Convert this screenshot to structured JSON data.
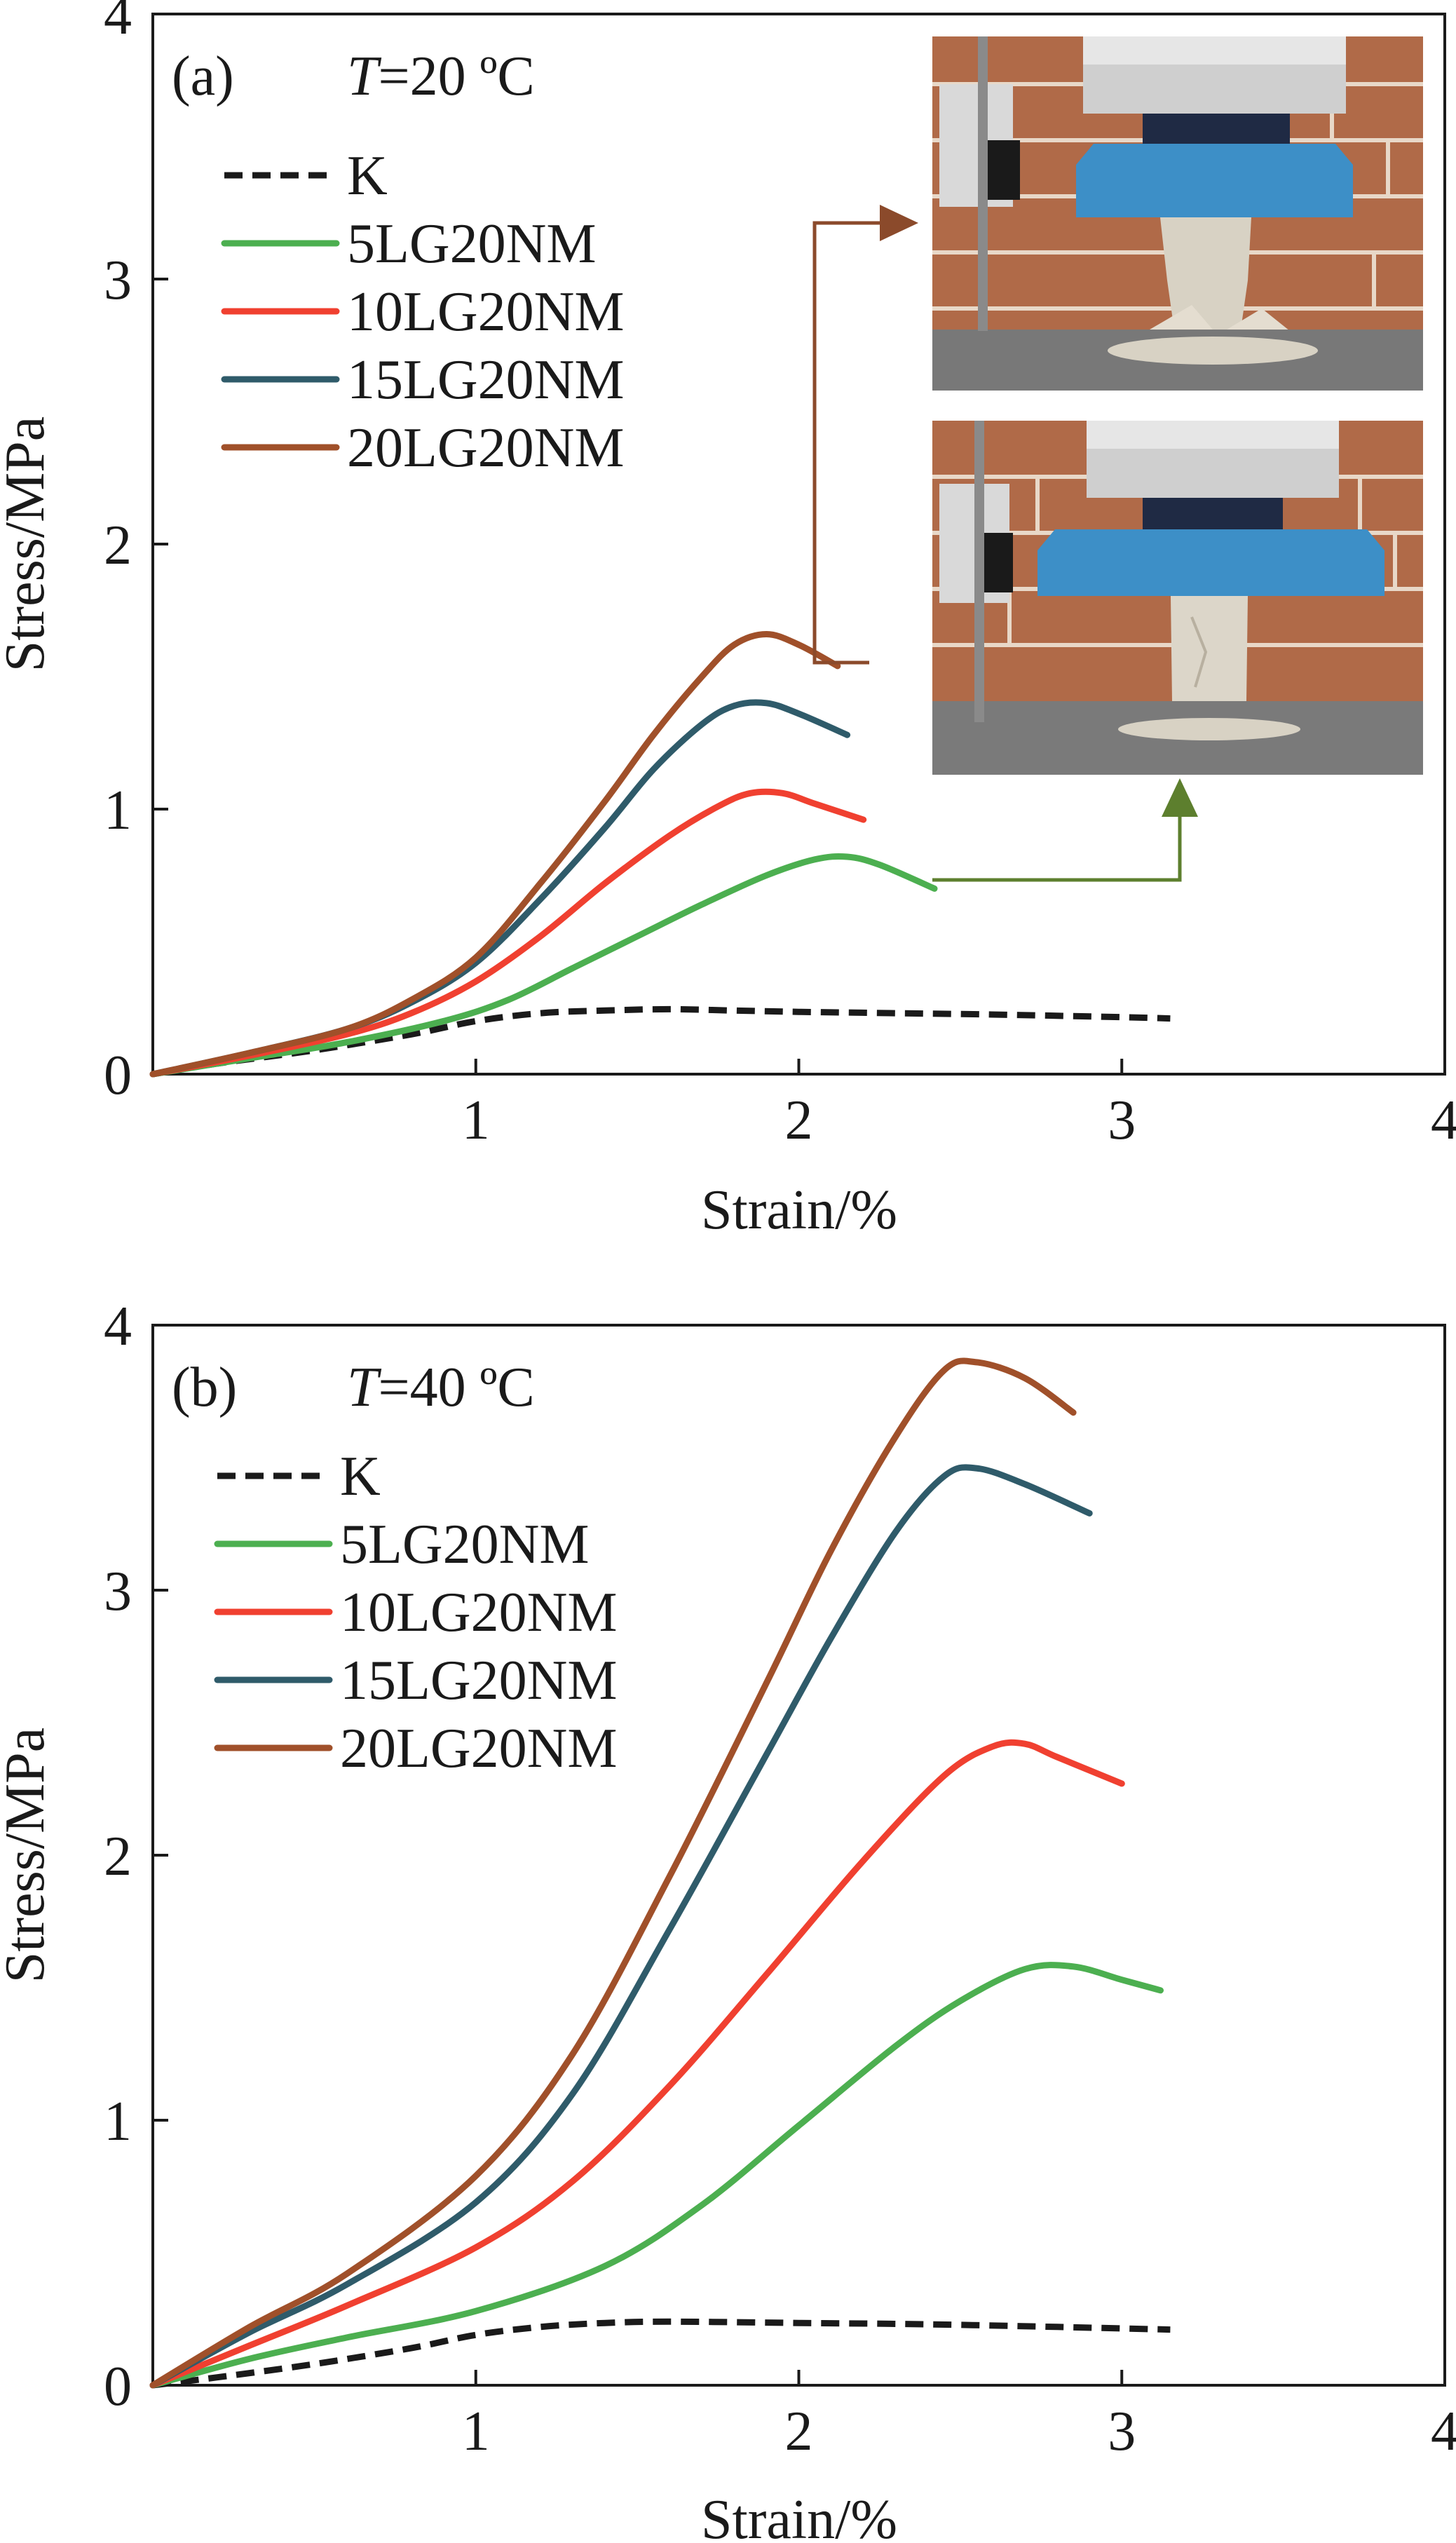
{
  "colors": {
    "K": "#1a1a1a",
    "5LG20NM": "#4caf50",
    "10LG20NM": "#f04030",
    "15LG20NM": "#2f5b6a",
    "20LG20NM": "#a0502a"
  },
  "chart_data": [
    {
      "type": "line",
      "panel": "(a)",
      "condition": {
        "italic": "T",
        "rest": "=20 ºC"
      },
      "xlabel": "Strain/%",
      "ylabel": "Stress/MPa",
      "xlim": [
        0,
        4
      ],
      "ylim": [
        0,
        4
      ],
      "xticks": [
        1,
        2,
        3,
        4
      ],
      "yticks": [
        0,
        1,
        2,
        3,
        4
      ],
      "legend_position": "top-left",
      "inset": {
        "description_icons": [
          "specimen-photo-top",
          "specimen-photo-bottom"
        ],
        "position": "top-right"
      },
      "series": [
        {
          "name": "K",
          "style": "dashed",
          "x": [
            0,
            0.2,
            0.5,
            0.8,
            1.0,
            1.2,
            1.4,
            1.6,
            1.8,
            2.0,
            2.3,
            2.6,
            3.0,
            3.15
          ],
          "y": [
            0,
            0.04,
            0.09,
            0.15,
            0.2,
            0.23,
            0.24,
            0.245,
            0.24,
            0.235,
            0.23,
            0.225,
            0.215,
            0.21
          ]
        },
        {
          "name": "5LG20NM",
          "style": "solid",
          "x": [
            0,
            0.3,
            0.6,
            0.9,
            1.1,
            1.3,
            1.5,
            1.7,
            1.9,
            2.05,
            2.15,
            2.25,
            2.42
          ],
          "y": [
            0,
            0.06,
            0.12,
            0.2,
            0.28,
            0.4,
            0.52,
            0.64,
            0.75,
            0.81,
            0.82,
            0.79,
            0.7
          ]
        },
        {
          "name": "10LG20NM",
          "style": "solid",
          "x": [
            0,
            0.3,
            0.6,
            0.8,
            1.0,
            1.2,
            1.4,
            1.6,
            1.75,
            1.85,
            1.95,
            2.05,
            2.2
          ],
          "y": [
            0,
            0.07,
            0.15,
            0.23,
            0.35,
            0.52,
            0.72,
            0.9,
            1.01,
            1.06,
            1.06,
            1.02,
            0.96
          ]
        },
        {
          "name": "15LG20NM",
          "style": "solid",
          "x": [
            0,
            0.3,
            0.6,
            0.8,
            1.0,
            1.2,
            1.4,
            1.55,
            1.7,
            1.8,
            1.9,
            2.0,
            2.15
          ],
          "y": [
            0,
            0.08,
            0.17,
            0.27,
            0.42,
            0.66,
            0.93,
            1.15,
            1.32,
            1.39,
            1.4,
            1.36,
            1.28
          ]
        },
        {
          "name": "20LG20NM",
          "style": "solid",
          "x": [
            0,
            0.3,
            0.6,
            0.8,
            1.0,
            1.2,
            1.4,
            1.55,
            1.7,
            1.8,
            1.9,
            2.0,
            2.12
          ],
          "y": [
            0,
            0.08,
            0.17,
            0.28,
            0.44,
            0.72,
            1.03,
            1.28,
            1.5,
            1.62,
            1.66,
            1.62,
            1.54
          ]
        }
      ]
    },
    {
      "type": "line",
      "panel": "(b)",
      "condition": {
        "italic": "T",
        "rest": "=40 ºC"
      },
      "xlabel": "Strain/%",
      "ylabel": "Stress/MPa",
      "xlim": [
        0,
        4
      ],
      "ylim": [
        0,
        4
      ],
      "xticks": [
        1,
        2,
        3,
        4
      ],
      "yticks": [
        0,
        1,
        2,
        3,
        4
      ],
      "legend_position": "top-left",
      "series": [
        {
          "name": "K",
          "style": "dashed",
          "x": [
            0,
            0.2,
            0.5,
            0.8,
            1.0,
            1.2,
            1.4,
            1.6,
            2.0,
            2.4,
            2.8,
            3.15
          ],
          "y": [
            0,
            0.03,
            0.08,
            0.14,
            0.19,
            0.22,
            0.235,
            0.24,
            0.235,
            0.23,
            0.22,
            0.21
          ]
        },
        {
          "name": "5LG20NM",
          "style": "solid",
          "x": [
            0,
            0.3,
            0.6,
            1.0,
            1.4,
            1.7,
            2.0,
            2.3,
            2.5,
            2.7,
            2.85,
            3.0,
            3.12
          ],
          "y": [
            0,
            0.1,
            0.18,
            0.28,
            0.45,
            0.68,
            0.98,
            1.28,
            1.45,
            1.57,
            1.58,
            1.53,
            1.49
          ]
        },
        {
          "name": "10LG20NM",
          "style": "solid",
          "x": [
            0,
            0.3,
            0.6,
            1.0,
            1.3,
            1.6,
            1.9,
            2.2,
            2.45,
            2.6,
            2.7,
            2.8,
            3.0
          ],
          "y": [
            0,
            0.15,
            0.3,
            0.52,
            0.77,
            1.13,
            1.55,
            1.98,
            2.3,
            2.41,
            2.42,
            2.37,
            2.27
          ]
        },
        {
          "name": "15LG20NM",
          "style": "solid",
          "x": [
            0,
            0.3,
            0.6,
            1.0,
            1.3,
            1.6,
            1.9,
            2.1,
            2.3,
            2.45,
            2.55,
            2.7,
            2.9
          ],
          "y": [
            0,
            0.2,
            0.38,
            0.69,
            1.1,
            1.72,
            2.38,
            2.82,
            3.22,
            3.43,
            3.46,
            3.4,
            3.29
          ]
        },
        {
          "name": "20LG20NM",
          "style": "solid",
          "x": [
            0,
            0.3,
            0.6,
            1.0,
            1.3,
            1.6,
            1.9,
            2.1,
            2.3,
            2.45,
            2.55,
            2.7,
            2.85
          ],
          "y": [
            0,
            0.22,
            0.42,
            0.79,
            1.25,
            1.92,
            2.65,
            3.15,
            3.58,
            3.83,
            3.86,
            3.8,
            3.67
          ]
        }
      ]
    }
  ]
}
